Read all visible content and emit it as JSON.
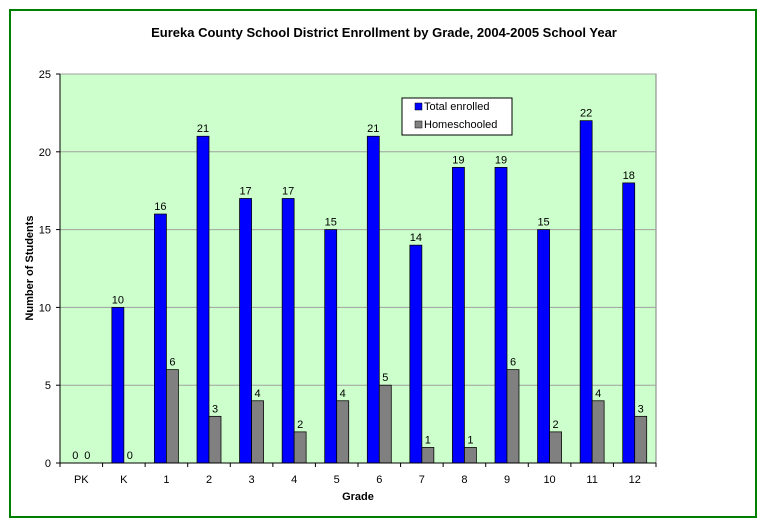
{
  "chart_data": {
    "type": "bar",
    "title": "Eureka County School District Enrollment by Grade, 2004-2005 School Year",
    "xlabel": "Grade",
    "ylabel": "Number of Students",
    "categories": [
      "PK",
      "K",
      "1",
      "2",
      "3",
      "4",
      "5",
      "6",
      "7",
      "8",
      "9",
      "10",
      "11",
      "12"
    ],
    "series": [
      {
        "name": "Total enrolled",
        "values": [
          0,
          10,
          16,
          21,
          17,
          17,
          15,
          21,
          14,
          19,
          19,
          15,
          22,
          18
        ],
        "color": "#0000ff"
      },
      {
        "name": "Homeschooled",
        "values": [
          0,
          0,
          6,
          3,
          4,
          2,
          4,
          5,
          1,
          1,
          6,
          2,
          4,
          3
        ],
        "color": "#808080"
      }
    ],
    "ylim": [
      0,
      25
    ],
    "yticks": [
      0,
      5,
      10,
      15,
      20,
      25
    ],
    "grid": true,
    "legend_position": "top-right",
    "plot_background": "#ccffcc",
    "frame_border": "#008000"
  }
}
